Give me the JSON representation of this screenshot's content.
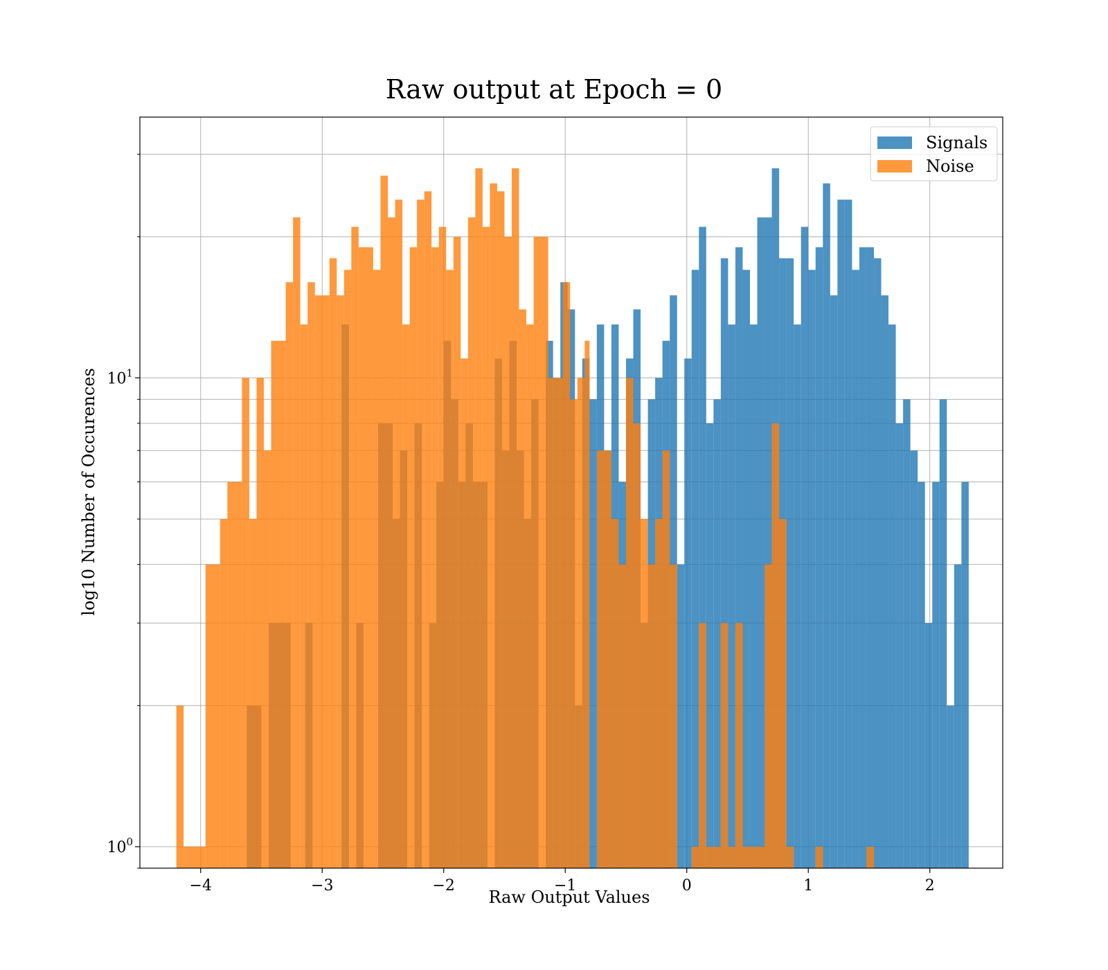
{
  "chart_data": {
    "type": "bar",
    "title": "Raw output at Epoch = 0",
    "xlabel": "Raw Output Values",
    "ylabel": "log10 Number of Occurences",
    "x_axis": {
      "range": [
        -4.5,
        2.6
      ],
      "ticks": [
        -4,
        -3,
        -2,
        -1,
        0,
        1,
        2
      ],
      "tick_labels": [
        "−4",
        "−3",
        "−2",
        "−1",
        "0",
        "1",
        "2"
      ]
    },
    "y_axis": {
      "scale": "log",
      "range": [
        0.9,
        36
      ],
      "major_ticks": [
        1,
        10
      ],
      "major_tick_labels": [
        {
          "base": "10",
          "exponent": "0"
        },
        {
          "base": "10",
          "exponent": "1"
        }
      ],
      "minor_ticks": [
        0.9,
        2,
        3,
        4,
        5,
        6,
        7,
        8,
        9,
        20,
        30
      ]
    },
    "grid": true,
    "legend": {
      "position": "upper right"
    },
    "series": [
      {
        "name": "Signals",
        "color": "#1f77b4",
        "alpha": 0.8,
        "bins": [
          [
            -3.62,
            -3.5,
            2
          ],
          [
            -3.44,
            -3.26,
            3
          ],
          [
            -3.14,
            -3.08,
            3
          ],
          [
            -2.84,
            -2.78,
            13
          ],
          [
            -2.72,
            -2.66,
            3
          ],
          [
            -2.54,
            -2.42,
            8
          ],
          [
            -2.42,
            -2.36,
            5
          ],
          [
            -2.36,
            -2.3,
            7
          ],
          [
            -2.24,
            -2.18,
            8
          ],
          [
            -2.12,
            -2.06,
            3
          ],
          [
            -2.06,
            -2.0,
            6
          ],
          [
            -2.0,
            -1.94,
            12
          ],
          [
            -1.94,
            -1.88,
            9
          ],
          [
            -1.88,
            -1.82,
            6
          ],
          [
            -1.82,
            -1.76,
            8
          ],
          [
            -1.76,
            -1.7,
            6
          ],
          [
            -1.7,
            -1.64,
            6
          ],
          [
            -1.58,
            -1.52,
            11
          ],
          [
            -1.52,
            -1.46,
            7
          ],
          [
            -1.46,
            -1.4,
            12
          ],
          [
            -1.4,
            -1.34,
            7
          ],
          [
            -1.34,
            -1.28,
            5
          ],
          [
            -1.28,
            -1.22,
            9
          ],
          [
            -1.16,
            -1.1,
            12
          ],
          [
            -1.1,
            -1.04,
            10
          ],
          [
            -1.04,
            -0.98,
            16
          ],
          [
            -0.98,
            -0.92,
            14
          ],
          [
            -0.92,
            -0.86,
            2
          ],
          [
            -0.86,
            -0.8,
            11
          ],
          [
            -0.8,
            -0.74,
            9
          ],
          [
            -0.74,
            -0.68,
            13
          ],
          [
            -0.68,
            -0.62,
            7
          ],
          [
            -0.62,
            -0.56,
            13
          ],
          [
            -0.56,
            -0.5,
            6
          ],
          [
            -0.5,
            -0.44,
            11
          ],
          [
            -0.44,
            -0.38,
            14
          ],
          [
            -0.38,
            -0.32,
            3
          ],
          [
            -0.32,
            -0.26,
            9
          ],
          [
            -0.26,
            -0.2,
            10
          ],
          [
            -0.2,
            -0.14,
            12
          ],
          [
            -0.14,
            -0.08,
            15
          ],
          [
            -0.08,
            -0.02,
            4
          ],
          [
            -0.02,
            0.04,
            11
          ],
          [
            0.04,
            0.1,
            17
          ],
          [
            0.1,
            0.16,
            21
          ],
          [
            0.16,
            0.22,
            8
          ],
          [
            0.22,
            0.28,
            9
          ],
          [
            0.28,
            0.34,
            18
          ],
          [
            0.34,
            0.4,
            13
          ],
          [
            0.4,
            0.46,
            19
          ],
          [
            0.46,
            0.52,
            17
          ],
          [
            0.52,
            0.58,
            13
          ],
          [
            0.58,
            0.64,
            22
          ],
          [
            0.64,
            0.7,
            22
          ],
          [
            0.7,
            0.76,
            28
          ],
          [
            0.76,
            0.82,
            18
          ],
          [
            0.82,
            0.88,
            18
          ],
          [
            0.88,
            0.94,
            13
          ],
          [
            0.94,
            1.0,
            21
          ],
          [
            1.0,
            1.06,
            17
          ],
          [
            1.06,
            1.12,
            19
          ],
          [
            1.12,
            1.18,
            26
          ],
          [
            1.18,
            1.24,
            15
          ],
          [
            1.24,
            1.3,
            24
          ],
          [
            1.3,
            1.36,
            24
          ],
          [
            1.36,
            1.42,
            17
          ],
          [
            1.42,
            1.48,
            19
          ],
          [
            1.48,
            1.54,
            19
          ],
          [
            1.54,
            1.6,
            18
          ],
          [
            1.6,
            1.66,
            15
          ],
          [
            1.66,
            1.72,
            13
          ],
          [
            1.72,
            1.78,
            8
          ],
          [
            1.78,
            1.84,
            9
          ],
          [
            1.84,
            1.9,
            7
          ],
          [
            1.9,
            1.96,
            6
          ],
          [
            1.96,
            2.02,
            3
          ],
          [
            2.02,
            2.08,
            6
          ],
          [
            2.08,
            2.14,
            9
          ],
          [
            2.14,
            2.2,
            2
          ],
          [
            2.2,
            2.26,
            4
          ],
          [
            2.26,
            2.32,
            6
          ]
        ]
      },
      {
        "name": "Noise",
        "color": "#ff7f0e",
        "alpha": 0.8,
        "bins": [
          [
            -4.2,
            -4.14,
            2
          ],
          [
            -4.14,
            -3.96,
            1
          ],
          [
            -3.96,
            -3.84,
            4
          ],
          [
            -3.84,
            -3.78,
            5
          ],
          [
            -3.78,
            -3.66,
            6
          ],
          [
            -3.66,
            -3.6,
            10
          ],
          [
            -3.6,
            -3.54,
            5
          ],
          [
            -3.54,
            -3.48,
            10
          ],
          [
            -3.48,
            -3.42,
            7
          ],
          [
            -3.42,
            -3.3,
            12
          ],
          [
            -3.3,
            -3.24,
            16
          ],
          [
            -3.24,
            -3.18,
            22
          ],
          [
            -3.18,
            -3.12,
            13
          ],
          [
            -3.12,
            -3.06,
            16
          ],
          [
            -3.06,
            -2.94,
            15
          ],
          [
            -2.94,
            -2.88,
            18
          ],
          [
            -2.88,
            -2.82,
            15
          ],
          [
            -2.82,
            -2.76,
            17
          ],
          [
            -2.76,
            -2.7,
            21
          ],
          [
            -2.7,
            -2.58,
            19
          ],
          [
            -2.58,
            -2.52,
            17
          ],
          [
            -2.52,
            -2.46,
            27
          ],
          [
            -2.46,
            -2.4,
            22
          ],
          [
            -2.4,
            -2.34,
            24
          ],
          [
            -2.34,
            -2.28,
            13
          ],
          [
            -2.28,
            -2.22,
            19
          ],
          [
            -2.22,
            -2.16,
            24
          ],
          [
            -2.16,
            -2.1,
            25
          ],
          [
            -2.1,
            -2.04,
            19
          ],
          [
            -2.04,
            -1.98,
            21
          ],
          [
            -1.98,
            -1.92,
            17
          ],
          [
            -1.92,
            -1.86,
            20
          ],
          [
            -1.86,
            -1.8,
            11
          ],
          [
            -1.8,
            -1.74,
            22
          ],
          [
            -1.74,
            -1.68,
            28
          ],
          [
            -1.68,
            -1.62,
            21
          ],
          [
            -1.62,
            -1.56,
            26
          ],
          [
            -1.56,
            -1.5,
            25
          ],
          [
            -1.5,
            -1.44,
            20
          ],
          [
            -1.44,
            -1.38,
            28
          ],
          [
            -1.38,
            -1.32,
            14
          ],
          [
            -1.32,
            -1.26,
            13
          ],
          [
            -1.26,
            -1.2,
            20
          ],
          [
            -1.2,
            -1.14,
            20
          ],
          [
            -1.14,
            -1.08,
            10
          ],
          [
            -1.08,
            -1.02,
            10
          ],
          [
            -1.02,
            -0.96,
            16
          ],
          [
            -0.96,
            -0.9,
            9
          ],
          [
            -0.9,
            -0.84,
            10
          ],
          [
            -0.84,
            -0.8,
            12
          ],
          [
            -0.74,
            -0.62,
            7
          ],
          [
            -0.62,
            -0.56,
            5
          ],
          [
            -0.56,
            -0.5,
            4
          ],
          [
            -0.5,
            -0.44,
            10
          ],
          [
            -0.44,
            -0.38,
            8
          ],
          [
            -0.38,
            -0.32,
            5
          ],
          [
            -0.32,
            -0.26,
            4
          ],
          [
            -0.26,
            -0.2,
            5
          ],
          [
            -0.2,
            -0.14,
            7
          ],
          [
            -0.14,
            -0.08,
            4
          ],
          [
            0.04,
            0.1,
            1
          ],
          [
            0.1,
            0.16,
            3
          ],
          [
            0.16,
            0.22,
            1
          ],
          [
            0.22,
            0.28,
            1
          ],
          [
            0.28,
            0.34,
            3
          ],
          [
            0.34,
            0.4,
            1
          ],
          [
            0.4,
            0.46,
            3
          ],
          [
            0.46,
            0.52,
            1
          ],
          [
            0.52,
            0.58,
            1
          ],
          [
            0.58,
            0.64,
            1
          ],
          [
            0.64,
            0.7,
            4
          ],
          [
            0.7,
            0.76,
            8
          ],
          [
            0.76,
            0.82,
            5
          ],
          [
            0.82,
            0.88,
            1
          ],
          [
            1.06,
            1.12,
            1
          ],
          [
            1.48,
            1.54,
            1
          ]
        ]
      }
    ]
  }
}
